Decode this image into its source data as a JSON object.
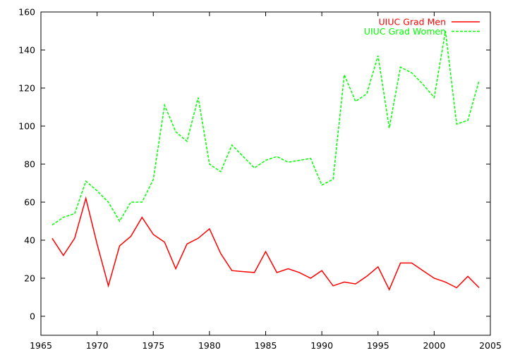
{
  "chart_data": {
    "type": "line",
    "xlim": [
      1965,
      2005
    ],
    "ylim": [
      -10,
      160
    ],
    "xticks": [
      1965,
      1970,
      1975,
      1980,
      1985,
      1990,
      1995,
      2000,
      2005
    ],
    "yticks": [
      0,
      20,
      40,
      60,
      80,
      100,
      120,
      140,
      160
    ],
    "grid": false,
    "legend_position": "top-right",
    "series": [
      {
        "name": "UIUC Grad Men",
        "color": "#ff0000",
        "dash": "solid",
        "x": [
          1966,
          1967,
          1968,
          1969,
          1970,
          1971,
          1972,
          1973,
          1974,
          1975,
          1976,
          1977,
          1978,
          1979,
          1980,
          1981,
          1982,
          1983,
          1984,
          1985,
          1986,
          1987,
          1988,
          1989,
          1990,
          1991,
          1992,
          1993,
          1994,
          1995,
          1996,
          1997,
          1998,
          1999,
          2000,
          2001,
          2002,
          2003,
          2004
        ],
        "y": [
          41,
          32,
          41,
          62,
          38,
          16,
          37,
          42,
          52,
          43,
          39,
          25,
          38,
          41,
          46,
          33,
          24,
          23.5,
          23,
          34,
          23,
          25,
          23,
          20,
          24,
          16,
          18,
          17,
          21,
          26,
          14,
          28,
          28,
          24,
          20,
          18,
          15,
          21,
          15
        ]
      },
      {
        "name": "UIUC Grad Women",
        "color": "#00ff00",
        "dash": "dashed",
        "x": [
          1966,
          1967,
          1968,
          1969,
          1970,
          1971,
          1972,
          1973,
          1974,
          1975,
          1976,
          1977,
          1978,
          1979,
          1980,
          1981,
          1982,
          1983,
          1984,
          1985,
          1986,
          1987,
          1988,
          1989,
          1990,
          1991,
          1992,
          1993,
          1994,
          1995,
          1996,
          1997,
          1998,
          1999,
          2000,
          2001,
          2002,
          2003,
          2004
        ],
        "y": [
          48,
          52,
          54,
          71,
          66,
          60,
          50,
          60,
          60,
          72,
          111,
          97,
          92,
          115,
          80,
          76,
          90,
          84,
          78,
          82,
          84,
          81,
          82,
          83,
          69,
          72,
          127,
          113,
          117,
          137,
          99,
          131,
          128,
          122,
          115,
          150,
          101,
          103,
          124
        ]
      }
    ]
  }
}
